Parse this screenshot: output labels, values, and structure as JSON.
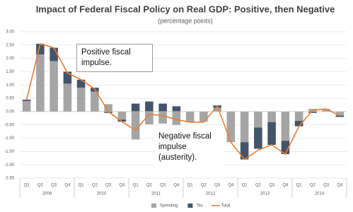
{
  "chart_data": {
    "type": "bar",
    "title": "Impact of Federal Fiscal Policy on Real GDP: Positive, then Negative",
    "subtitle": "(percentage points)",
    "categories": [
      "Q1",
      "Q2",
      "Q3",
      "Q4",
      "Q1",
      "Q2",
      "Q3",
      "Q4",
      "Q1",
      "Q2",
      "Q3",
      "Q4",
      "Q1",
      "Q2",
      "Q3",
      "Q4",
      "Q1",
      "Q2",
      "Q3",
      "Q4",
      "Q1",
      "Q2",
      "Q3",
      "Q4"
    ],
    "years": [
      "2009",
      "2010",
      "2011",
      "2012",
      "2013",
      "2014"
    ],
    "series": [
      {
        "name": "Spending",
        "color": "#a5a5a5",
        "values": [
          0.4,
          2.15,
          1.9,
          1.05,
          0.9,
          0.75,
          0.28,
          -0.3,
          -1.05,
          -0.48,
          -0.45,
          -0.5,
          -0.4,
          -0.38,
          0.15,
          -1.15,
          -1.15,
          -0.6,
          -0.4,
          -1.1,
          -0.35,
          0.1,
          0.1,
          -0.15
        ]
      },
      {
        "name": "Tax",
        "color": "#44546a",
        "values": [
          0.05,
          0.4,
          0.5,
          0.45,
          0.3,
          0.15,
          -0.05,
          -0.08,
          0.3,
          0.38,
          0.3,
          0.2,
          0.0,
          0.0,
          0.08,
          0.0,
          -0.65,
          -0.8,
          -0.85,
          -0.5,
          -0.2,
          -0.05,
          0.0,
          -0.05
        ]
      },
      {
        "name": "Total",
        "type": "line",
        "color": "#ed7d31",
        "values": [
          0.45,
          2.55,
          2.4,
          1.45,
          1.2,
          0.85,
          0.0,
          -0.38,
          -0.7,
          -0.1,
          -0.15,
          -0.3,
          -0.4,
          -0.4,
          0.2,
          -1.15,
          -1.8,
          -1.45,
          -1.25,
          -1.6,
          -0.55,
          0.05,
          0.1,
          -0.15
        ]
      }
    ],
    "ylim": [
      -2.5,
      3.0
    ],
    "yticks": [
      {
        "value": 3,
        "label": "3.00"
      },
      {
        "value": 2.5,
        "label": "2.50"
      },
      {
        "value": 2,
        "label": "2.00"
      },
      {
        "value": 1.5,
        "label": "1.50"
      },
      {
        "value": 1,
        "label": "1.00"
      },
      {
        "value": 0.5,
        "label": "0.50"
      },
      {
        "value": 0,
        "label": "0.00"
      },
      {
        "value": -0.5,
        "label": "-0.50"
      },
      {
        "value": -1,
        "label": "-1.00"
      },
      {
        "value": -1.5,
        "label": "-1.50"
      },
      {
        "value": -2,
        "label": "-2.00"
      },
      {
        "value": -2.5,
        "label": "-2.50"
      }
    ],
    "grid": true,
    "legend": "bottom",
    "annotations": [
      "Positive fiscal impulse.",
      "Negative fiscal impulse (austerity)."
    ]
  }
}
